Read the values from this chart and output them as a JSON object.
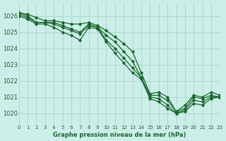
{
  "xlabel": "Graphe pression niveau de la mer (hPa)",
  "xlim": [
    0,
    23
  ],
  "ylim": [
    1019.3,
    1026.8
  ],
  "yticks": [
    1020,
    1021,
    1022,
    1023,
    1024,
    1025,
    1026
  ],
  "xticks": [
    0,
    1,
    2,
    3,
    4,
    5,
    6,
    7,
    8,
    9,
    10,
    11,
    12,
    13,
    14,
    15,
    16,
    17,
    18,
    19,
    20,
    21,
    22,
    23
  ],
  "background_color": "#cceee8",
  "grid_color": "#aad9cc",
  "line_color": "#1a6630",
  "text_color": "#1a6630",
  "lines": [
    [
      1026.2,
      1026.1,
      1025.9,
      1025.7,
      1025.7,
      1025.6,
      1025.5,
      1025.5,
      1025.6,
      1025.4,
      1025.1,
      1024.7,
      1024.3,
      1023.8,
      1022.5,
      1021.2,
      1021.3,
      1021.0,
      1020.1,
      1020.5,
      1021.1,
      1021.0,
      1021.3,
      1021.1
    ],
    [
      1026.2,
      1026.0,
      1025.6,
      1025.6,
      1025.6,
      1025.4,
      1025.2,
      1025.0,
      1025.5,
      1025.3,
      1024.8,
      1024.4,
      1023.8,
      1023.2,
      1022.2,
      1021.1,
      1021.1,
      1020.8,
      1020.1,
      1020.3,
      1021.0,
      1020.9,
      1021.1,
      1021.0
    ],
    [
      1026.1,
      1025.9,
      1025.6,
      1025.6,
      1025.5,
      1025.3,
      1025.1,
      1024.9,
      1025.4,
      1025.3,
      1024.5,
      1024.0,
      1023.4,
      1022.8,
      1022.2,
      1021.0,
      1020.9,
      1020.5,
      1020.0,
      1020.2,
      1020.8,
      1020.7,
      1021.0,
      1021.0
    ],
    [
      1026.0,
      1025.8,
      1025.5,
      1025.5,
      1025.3,
      1025.0,
      1024.8,
      1024.5,
      1025.3,
      1025.2,
      1024.4,
      1023.7,
      1023.1,
      1022.5,
      1022.1,
      1020.9,
      1020.7,
      1020.3,
      1020.0,
      1020.1,
      1020.6,
      1020.5,
      1020.9,
      1021.0
    ]
  ]
}
